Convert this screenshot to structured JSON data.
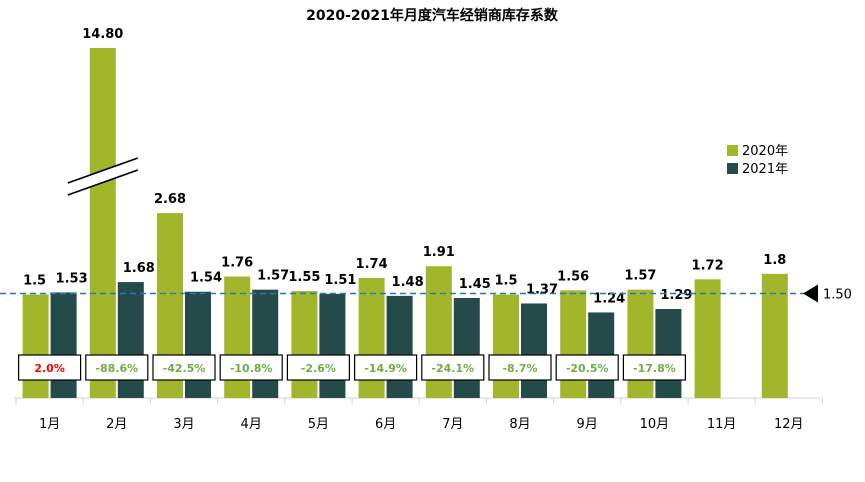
{
  "chart_data": {
    "type": "bar",
    "title": "2020-2021年月度汽车经销商库存系数",
    "categories": [
      "1月",
      "2月",
      "3月",
      "4月",
      "5月",
      "6月",
      "7月",
      "8月",
      "9月",
      "10月",
      "11月",
      "12月"
    ],
    "series": [
      {
        "name": "2020年",
        "color": "#a2b62b",
        "values": [
          1.5,
          14.8,
          2.68,
          1.76,
          1.55,
          1.74,
          1.91,
          1.5,
          1.56,
          1.57,
          1.72,
          1.8
        ],
        "labels": [
          "1.5",
          "14.80",
          "2.68",
          "1.76",
          "1.55",
          "1.74",
          "1.91",
          "1.5",
          "1.56",
          "1.57",
          "1.72",
          "1.8"
        ]
      },
      {
        "name": "2021年",
        "color": "#244a4a",
        "values": [
          1.53,
          1.68,
          1.54,
          1.57,
          1.51,
          1.48,
          1.45,
          1.37,
          1.24,
          1.29,
          null,
          null
        ],
        "labels": [
          "1.53",
          "1.68",
          "1.54",
          "1.57",
          "1.51",
          "1.48",
          "1.45",
          "1.37",
          "1.24",
          "1.29",
          "",
          ""
        ]
      }
    ],
    "yoy_change": [
      "2.0%",
      "-88.6%",
      "-42.5%",
      "-10.8%",
      "-2.6%",
      "-14.9%",
      "-24.1%",
      "-8.7%",
      "-20.5%",
      "-17.8%"
    ],
    "yoy_colors": [
      "#ff0000",
      "#70ad47",
      "#70ad47",
      "#70ad47",
      "#70ad47",
      "#70ad47",
      "#70ad47",
      "#70ad47",
      "#70ad47",
      "#70ad47"
    ],
    "reference_line": {
      "value": 1.5,
      "label": "1.50",
      "color": "#2e75b6"
    },
    "axis_break": {
      "category": "2月",
      "series": "2020年"
    },
    "legend_position": "right",
    "grid": false
  }
}
